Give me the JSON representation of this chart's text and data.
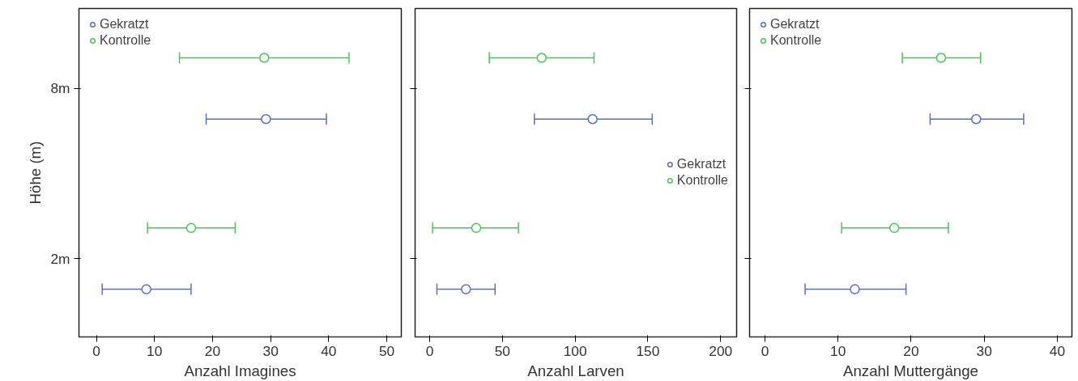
{
  "chart_data": [
    {
      "type": "scatter",
      "orientation": "horizontal",
      "categories": [
        "8m",
        "2m"
      ],
      "xlabel": "Anzahl Imagines",
      "ylabel": "Höhe (m)",
      "xlim": [
        -3,
        52.5
      ],
      "xticks": [
        0,
        10,
        20,
        30,
        40,
        50
      ],
      "marker": "circle",
      "grid": false,
      "legend": "top left",
      "series": [
        {
          "name": "Gekratzt",
          "color": "#5b6fc6",
          "values": [
            29.2,
            8.6
          ],
          "errors": [
            [
              18.9,
              39.6
            ],
            [
              1.0,
              16.3
            ]
          ]
        },
        {
          "name": "Kontrolle",
          "color": "#4cc45c",
          "values": [
            28.9,
            16.3
          ],
          "errors": [
            [
              14.3,
              43.5
            ],
            [
              8.8,
              23.9
            ]
          ]
        }
      ]
    },
    {
      "type": "scatter",
      "orientation": "horizontal",
      "categories": [
        null,
        null
      ],
      "xlabel": "Anzahl Larven",
      "xlim": [
        -10,
        211
      ],
      "xticks": [
        0,
        50,
        100,
        150,
        200
      ],
      "marker": "circle",
      "grid": false,
      "legend": "right",
      "series": [
        {
          "name": "Gekratzt",
          "color": "#5b6fc6",
          "values": [
            112,
            25
          ],
          "errors": [
            [
              72,
              153
            ],
            [
              5,
              45
            ]
          ]
        },
        {
          "name": "Kontrolle",
          "color": "#4cc45c",
          "values": [
            77,
            32
          ],
          "errors": [
            [
              41,
              113
            ],
            [
              2,
              61
            ]
          ]
        }
      ]
    },
    {
      "type": "scatter",
      "orientation": "horizontal",
      "categories": [
        null,
        null
      ],
      "xlabel": "Anzahl Muttergänge",
      "xlim": [
        -2.1,
        42
      ],
      "xticks": [
        0,
        10,
        20,
        30,
        40
      ],
      "marker": "circle",
      "grid": false,
      "legend": "top left",
      "series": [
        {
          "name": "Gekratzt",
          "color": "#5b6fc6",
          "values": [
            28.9,
            12.3
          ],
          "errors": [
            [
              22.6,
              35.4
            ],
            [
              5.5,
              19.3
            ]
          ]
        },
        {
          "name": "Kontrolle",
          "color": "#4cc45c",
          "values": [
            24.1,
            17.7
          ],
          "errors": [
            [
              18.8,
              29.5
            ],
            [
              10.5,
              25.1
            ]
          ]
        }
      ]
    }
  ]
}
